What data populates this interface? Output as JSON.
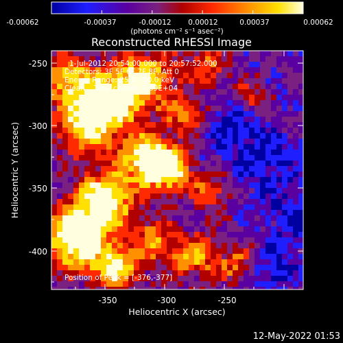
{
  "colorbar": {
    "tick_labels": [
      "-0.00062",
      "-0.00037",
      "-0.00012",
      "0.00012",
      "0.00037",
      "0.00062"
    ],
    "units": "(photons cm⁻² s⁻¹ asec⁻²)",
    "colormap": [
      "#0000a0",
      "#1e1eff",
      "#5a00a0",
      "#7a2080",
      "#b00000",
      "#ff2a00",
      "#ff9000",
      "#ffe000",
      "#ffffe0"
    ]
  },
  "title": "Reconstructed RHESSI Image",
  "x_axis": {
    "label": "Heliocentric X (arcsec)",
    "ticks": [
      "-350",
      "-300",
      "-250"
    ]
  },
  "y_axis": {
    "label": "Heliocentric Y (arcsec)",
    "ticks": [
      "-250",
      "-300",
      "-350",
      "-400"
    ]
  },
  "annotations": {
    "time_range": "1-Jul-2012 20:54:00.000 to 20:57:52.000",
    "detectors": "Detectors: 3F 5F 6F 7F 8F, Att 0",
    "energy": "Energy Range: 25.0 - 50.0 keV",
    "algorithm": "Clean    Total counts: 1.09E+04",
    "peak": "Position of Peak = [-376,-377]"
  },
  "footer_date": "12-May-2022 01:53"
}
